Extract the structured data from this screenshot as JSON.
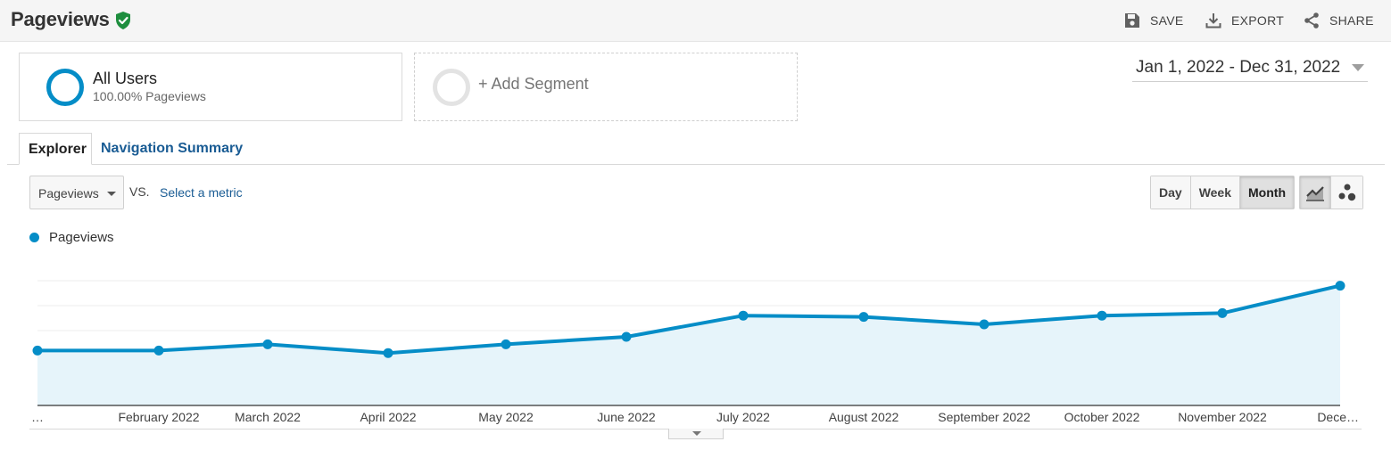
{
  "header": {
    "title": "Pageviews",
    "actions": [
      {
        "label": "SAVE",
        "icon": "save-icon"
      },
      {
        "label": "EXPORT",
        "icon": "download-icon"
      },
      {
        "label": "SHARE",
        "icon": "share-icon"
      }
    ]
  },
  "segments": {
    "active": {
      "name": "All Users",
      "subtitle": "100.00% Pageviews"
    },
    "add_label": "+ Add Segment"
  },
  "date_range": "Jan 1, 2022 - Dec 31, 2022",
  "tabs": [
    {
      "label": "Explorer",
      "active": true
    },
    {
      "label": "Navigation Summary",
      "active": false
    }
  ],
  "controls": {
    "metric": "Pageviews",
    "vs_label": "VS.",
    "select_metric": "Select a metric",
    "granularity": [
      {
        "label": "Day",
        "active": false
      },
      {
        "label": "Week",
        "active": false
      },
      {
        "label": "Month",
        "active": true
      }
    ],
    "chart_types": [
      {
        "icon": "line-chart-icon",
        "active": true
      },
      {
        "icon": "motion-chart-icon",
        "active": false
      }
    ]
  },
  "colors": {
    "accent": "#058dc7",
    "area_fill": "#e6f4fa",
    "link": "#1a5c94",
    "verified": "#1e8e3e"
  },
  "chart_data": {
    "type": "line",
    "x": [
      "…",
      "February 2022",
      "March 2022",
      "April 2022",
      "May 2022",
      "June 2022",
      "July 2022",
      "August 2022",
      "September 2022",
      "October 2022",
      "November 2022",
      "Dece…"
    ],
    "series": [
      {
        "name": "Pageviews",
        "values": [
          2.2,
          2.2,
          2.45,
          2.1,
          2.45,
          2.75,
          3.6,
          3.55,
          3.25,
          3.6,
          3.7,
          4.8
        ]
      }
    ],
    "ylim": [
      0,
      6
    ],
    "grid": true,
    "legend": "top-left"
  }
}
